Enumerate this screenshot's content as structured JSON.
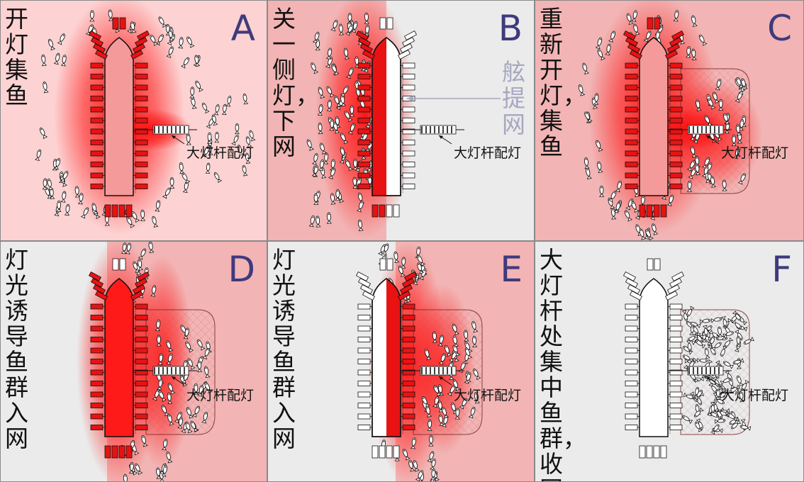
{
  "panels": [
    {
      "id": "A",
      "letter": "A",
      "caption": "开灯集鱼",
      "callout": "大灯杆配灯"
    },
    {
      "id": "B",
      "letter": "B",
      "caption": "关一侧灯，下网",
      "callout": "大灯杆配灯",
      "side_label": "舷提网"
    },
    {
      "id": "C",
      "letter": "C",
      "caption": "重新开灯，集鱼",
      "callout": "大灯杆配灯"
    },
    {
      "id": "D",
      "letter": "D",
      "caption": "灯光诱导鱼群入网",
      "callout": "大灯杆配灯"
    },
    {
      "id": "E",
      "letter": "E",
      "caption": "灯光诱导鱼群入网",
      "callout": "大灯杆配灯"
    },
    {
      "id": "F",
      "letter": "F",
      "caption": "大灯杆处集中鱼群，收网",
      "callout": "大灯杆配灯"
    }
  ],
  "colors": {
    "lamp_on": "#e81212",
    "glow": "#ff1010",
    "letter": "#3f3a7c",
    "panel_on": "#f2b4b4",
    "panel_off": "#ebebeb",
    "net_label": "#a7a7c0"
  }
}
